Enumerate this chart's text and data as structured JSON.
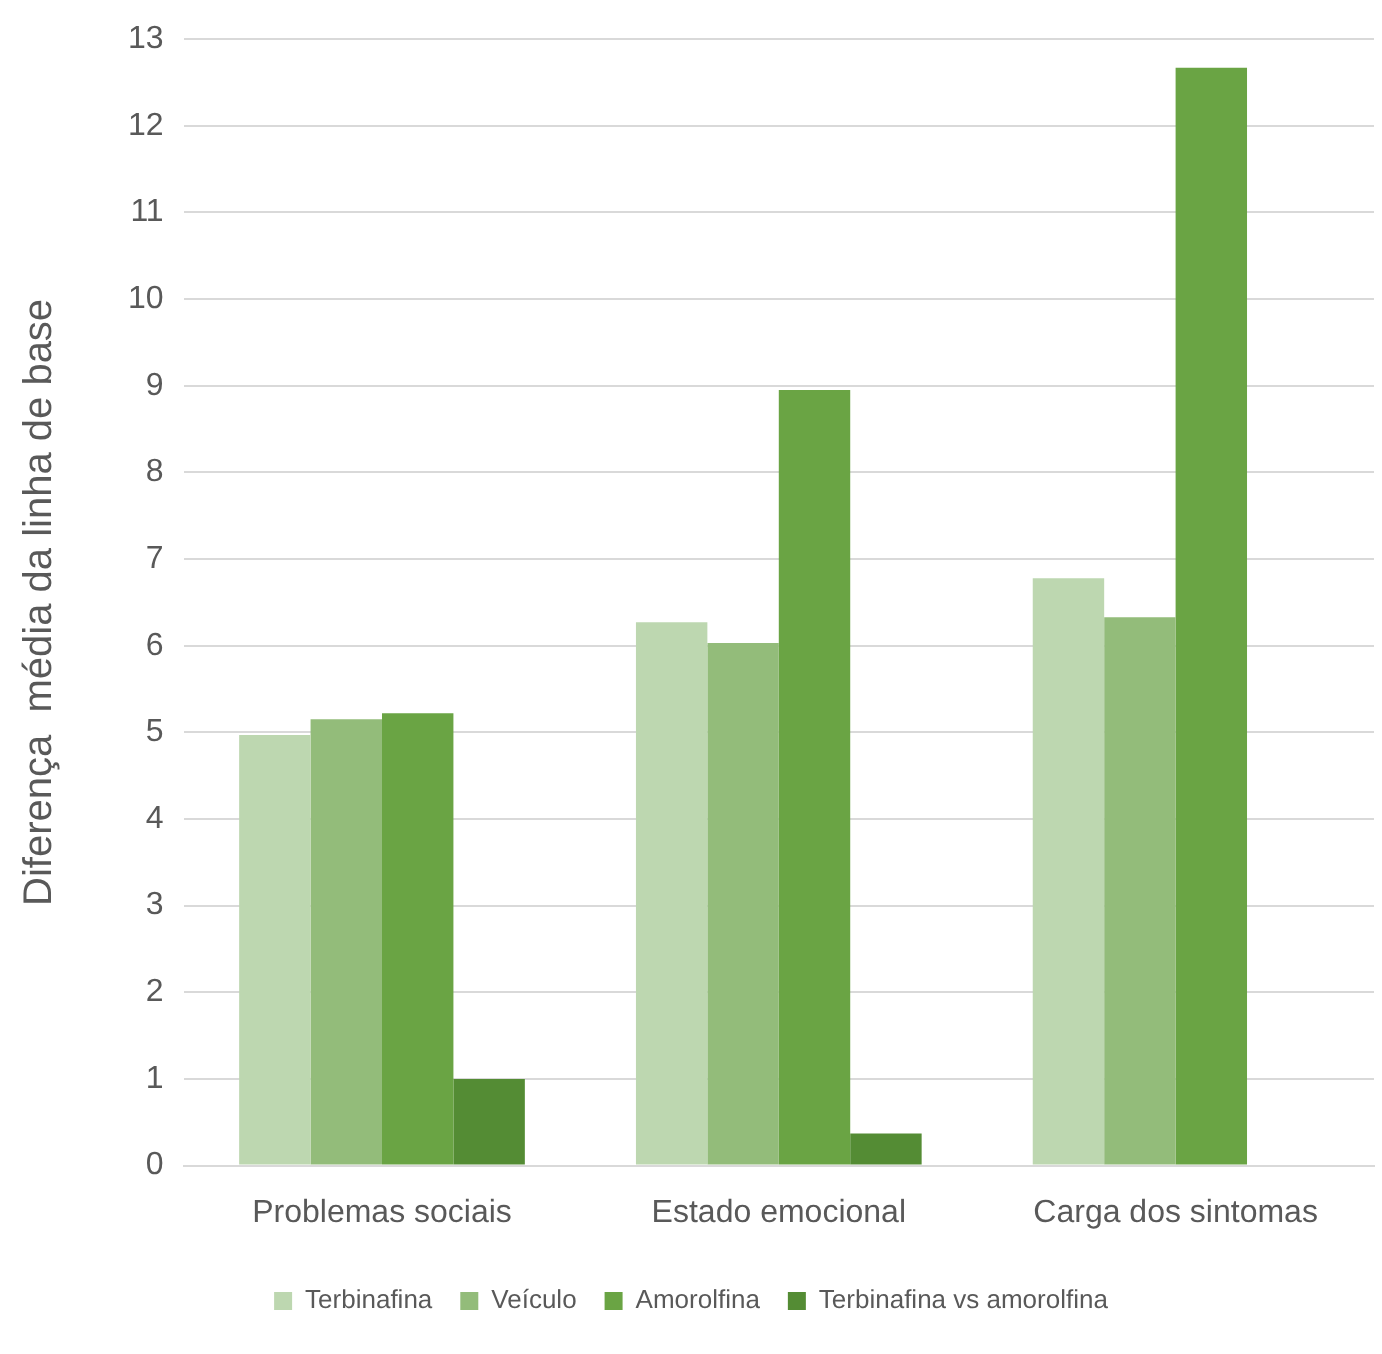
{
  "chart_data": {
    "type": "bar",
    "ylabel": "Diferença  média da linha de base",
    "categories": [
      "Problemas sociais",
      "Estado emocional",
      "Carga dos sintomas"
    ],
    "series": [
      {
        "name": "Terbinafina",
        "color": "#bdd7b0",
        "values": [
          4.97,
          6.27,
          6.78
        ]
      },
      {
        "name": "Veículo",
        "color": "#93bc7a",
        "values": [
          5.15,
          6.03,
          6.33
        ]
      },
      {
        "name": "Amorolfina",
        "color": "#6aa444",
        "values": [
          5.22,
          8.95,
          12.67
        ]
      },
      {
        "name": "Terbinafina vs amorolfina",
        "color": "#548c34",
        "values": [
          1.0,
          0.37,
          null
        ]
      }
    ],
    "ylim": [
      0,
      13
    ],
    "yticks": [
      0,
      1,
      2,
      3,
      4,
      5,
      6,
      7,
      8,
      9,
      10,
      11,
      12,
      13
    ],
    "grid": "y",
    "legend": "bottom"
  }
}
